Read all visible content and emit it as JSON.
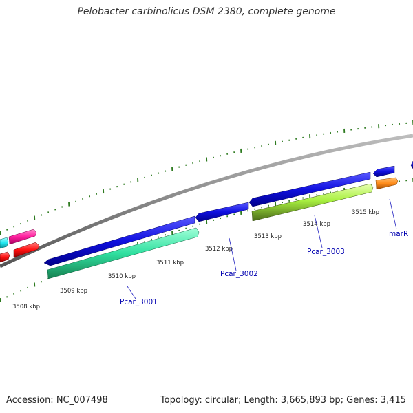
{
  "title": "Pelobacter carbinolicus DSM 2380, complete genome",
  "footer": {
    "accession": "Accession: NC_007498",
    "summary": "Topology: circular; Length: 3,665,893 bp; Genes: 3,415"
  },
  "scale_labels": [
    "3508 kbp",
    "3509 kbp",
    "3510 kbp",
    "3511 kbp",
    "3512 kbp",
    "3513 kbp",
    "3514 kbp",
    "3515 kbp"
  ],
  "gene_labels": [
    "Pcar_3001",
    "Pcar_3002",
    "Pcar_3003",
    "marR"
  ],
  "colors": {
    "backbone": "#888888",
    "ticks": "#2d7a1f",
    "forward_genes": "#1010e0",
    "gene_green": "#30e0a0",
    "gene_lime": "#a8f040",
    "gene_orange": "#ff8c1a",
    "gene_magenta": "#ff1f9f",
    "gene_red": "#ff1010",
    "gene_cyan": "#20e8f0",
    "label_text": "#0000b0"
  }
}
